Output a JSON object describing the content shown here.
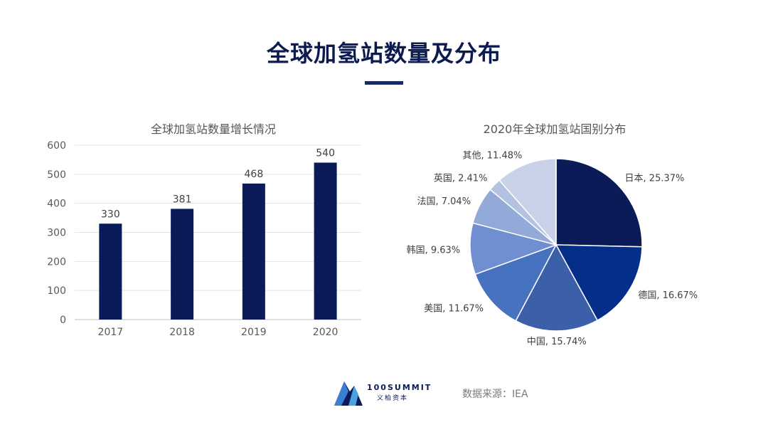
{
  "page": {
    "title": "全球加氢站数量及分布"
  },
  "chart_data": [
    {
      "type": "bar",
      "title": "全球加氢站数量增长情况",
      "categories": [
        "2017",
        "2018",
        "2019",
        "2020"
      ],
      "values": [
        330,
        381,
        468,
        540
      ],
      "ylim": [
        0,
        600
      ],
      "yticks": [
        0,
        100,
        200,
        300,
        400,
        500,
        600
      ],
      "grid": true,
      "color": "#0b1b57"
    },
    {
      "type": "pie",
      "title": "2020年全球加氢站国别分布",
      "slices": [
        {
          "label": "日本",
          "value": 25.37,
          "text": "日本, 25.37%",
          "color": "#0b1b57"
        },
        {
          "label": "德国",
          "value": 16.67,
          "text": "德国, 16.67%",
          "color": "#052d8a"
        },
        {
          "label": "中国",
          "value": 15.74,
          "text": "中国, 15.74%",
          "color": "#3b5fa8"
        },
        {
          "label": "美国",
          "value": 11.67,
          "text": "美国, 11.67%",
          "color": "#4672bf"
        },
        {
          "label": "韩国",
          "value": 9.63,
          "text": "韩国, 9.63%",
          "color": "#6f8fd0"
        },
        {
          "label": "法国",
          "value": 7.04,
          "text": "法国, 7.04%",
          "color": "#93a9d8"
        },
        {
          "label": "英国",
          "value": 2.41,
          "text": "英国, 2.41%",
          "color": "#b4c2e2"
        },
        {
          "label": "其他",
          "value": 11.48,
          "text": "其他, 11.48%",
          "color": "#c8d1e8"
        }
      ]
    }
  ],
  "footer": {
    "logo_text": "100SUMMIT",
    "logo_subtext": "义柏资本",
    "source": "数据来源：IEA"
  }
}
